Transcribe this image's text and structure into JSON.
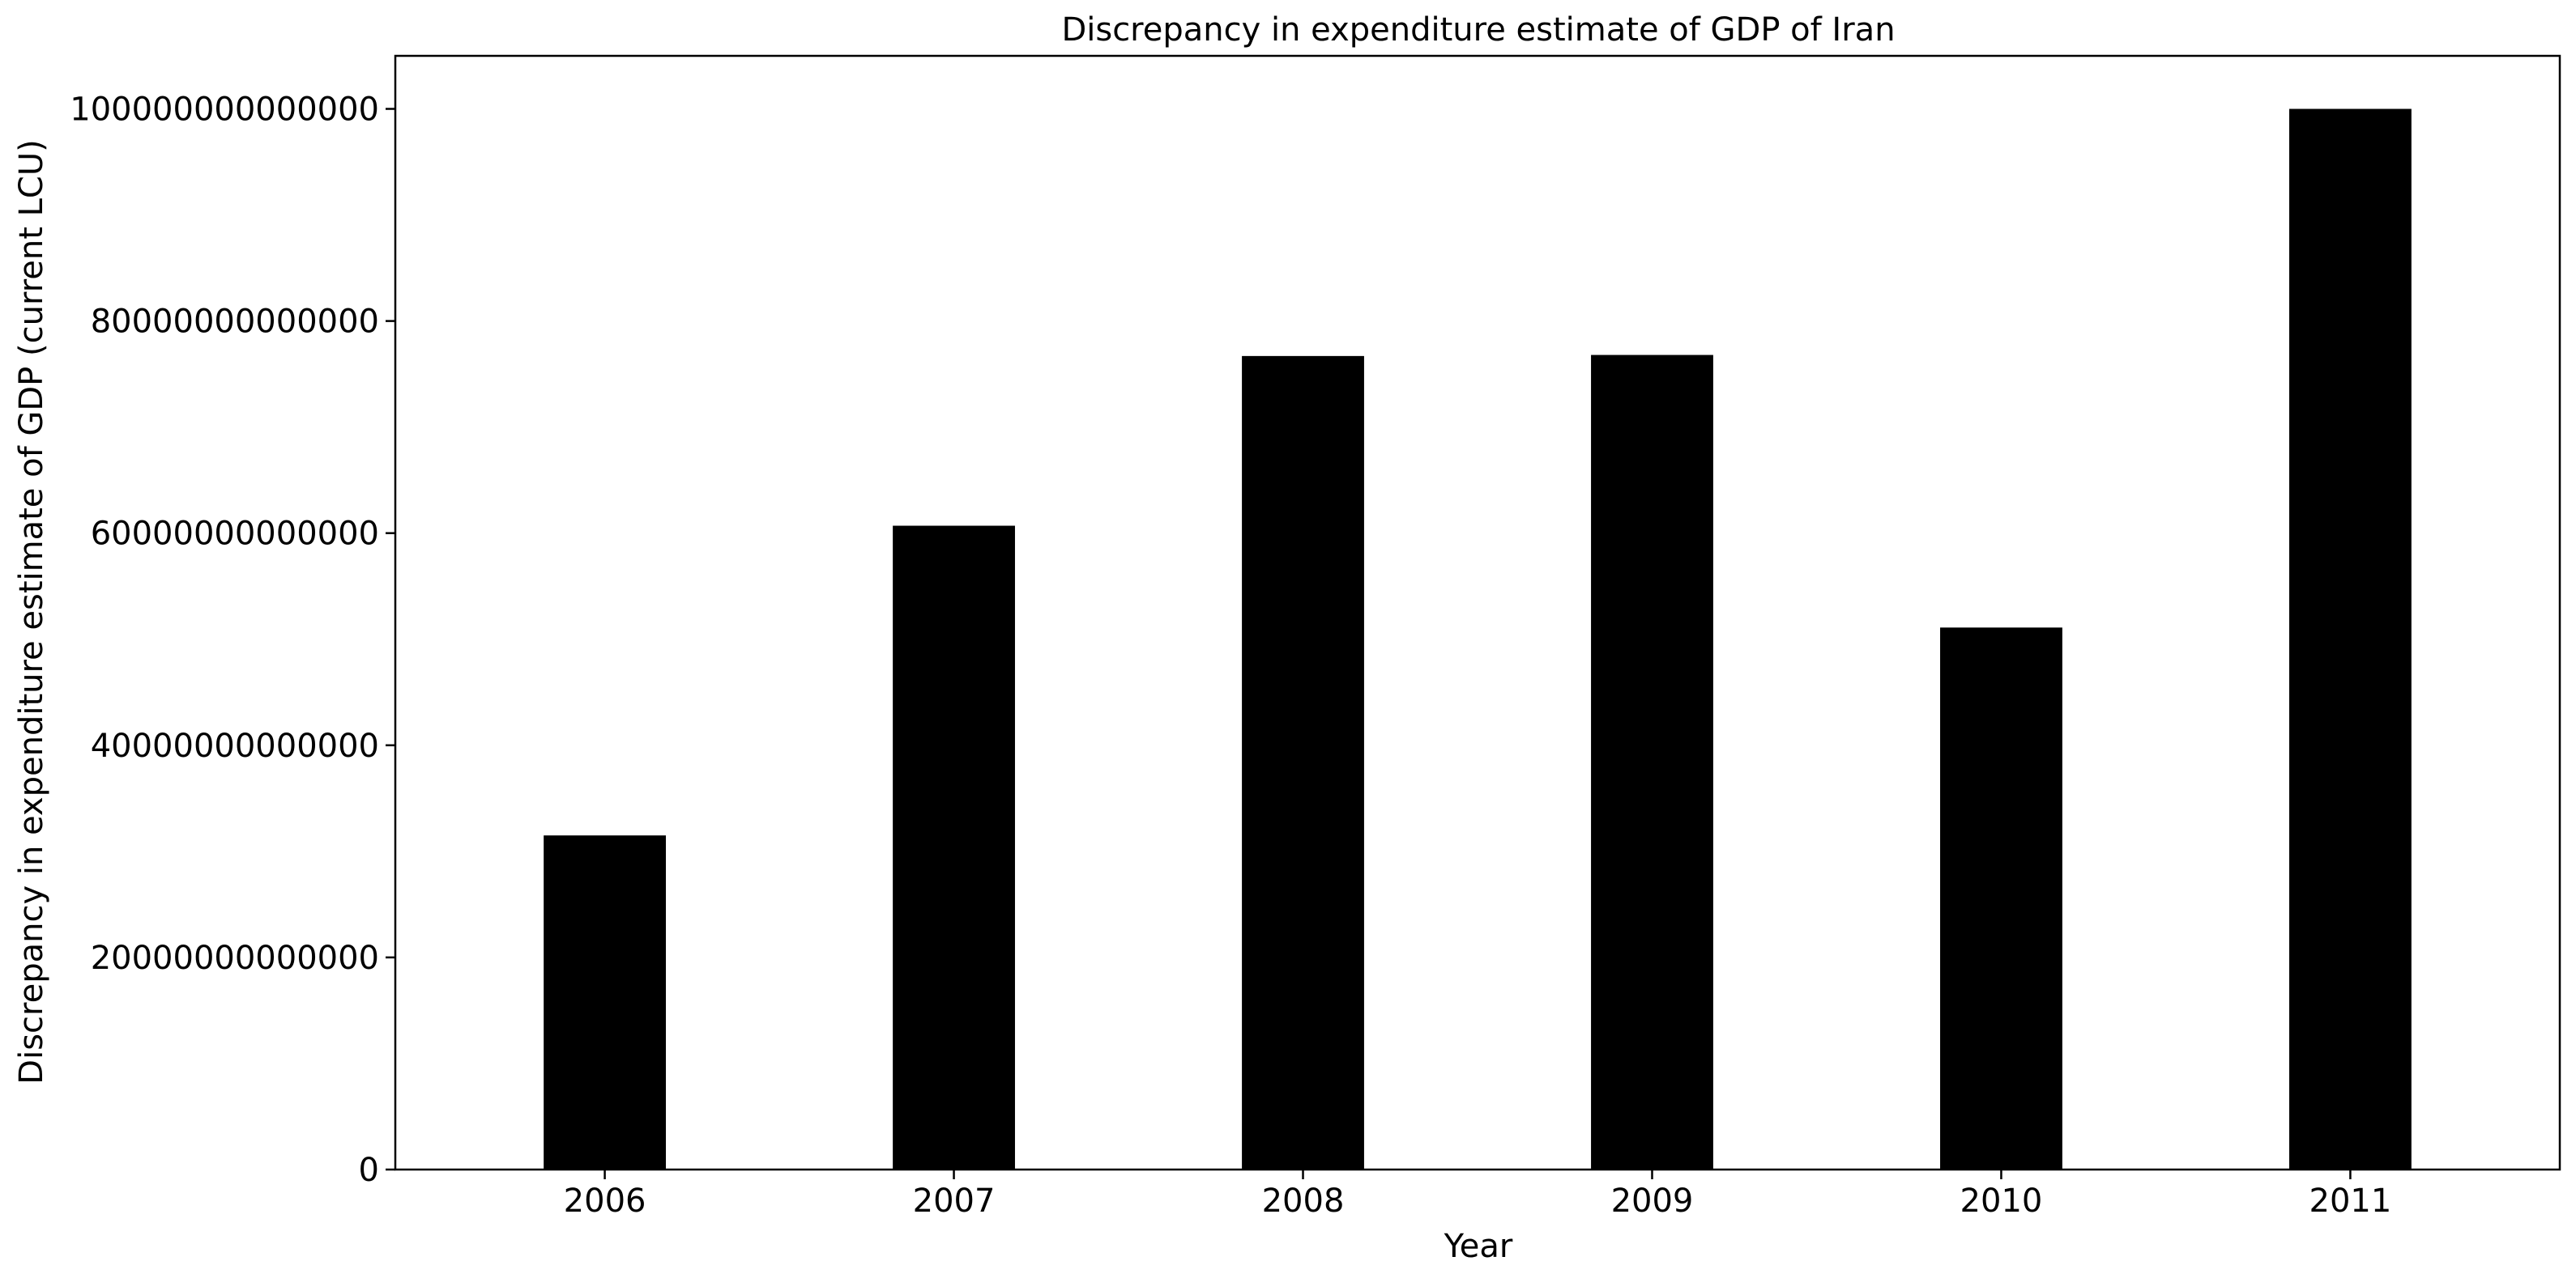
{
  "chart_data": {
    "type": "bar",
    "title": "Discrepancy in expenditure estimate of GDP of Iran",
    "xlabel": "Year",
    "ylabel": "Discrepancy in expenditure estimate of GDP (current LCU)",
    "categories": [
      "2006",
      "2007",
      "2008",
      "2009",
      "2010",
      "2011"
    ],
    "values": [
      31500000000000,
      60700000000000,
      76700000000000,
      76800000000000,
      51100000000000,
      100000000000000
    ],
    "ylim": [
      0,
      105000000000000
    ],
    "yticks": [
      0,
      20000000000000,
      40000000000000,
      60000000000000,
      80000000000000,
      100000000000000
    ],
    "ytick_labels": [
      "0",
      "20000000000000",
      "40000000000000",
      "60000000000000",
      "80000000000000",
      "100000000000000"
    ],
    "bar_color": "#000000",
    "grid": false,
    "legend": false
  }
}
